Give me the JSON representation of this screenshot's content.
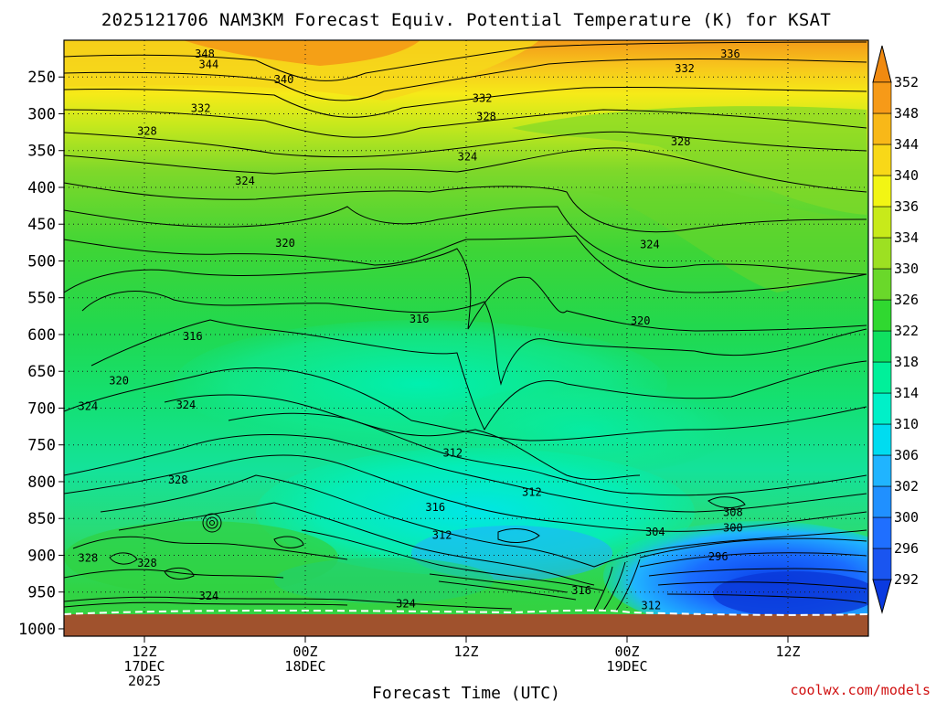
{
  "chart_data": {
    "type": "heatmap",
    "title": "2025121706 NAM3KM Forecast Equiv. Potential Temperature (K) for KSAT",
    "xlabel": "Forecast Time (UTC)",
    "ylabel": "",
    "x_ticks": [
      {
        "lines": [
          "12Z",
          "17DEC",
          "2025"
        ],
        "hour": 6
      },
      {
        "lines": [
          "00Z",
          "18DEC"
        ],
        "hour": 18
      },
      {
        "lines": [
          "12Z"
        ],
        "hour": 30
      },
      {
        "lines": [
          "00Z",
          "19DEC"
        ],
        "hour": 42
      },
      {
        "lines": [
          "12Z"
        ],
        "hour": 54
      }
    ],
    "x_range_hours": [
      0,
      60
    ],
    "y_ticks": [
      250,
      300,
      350,
      400,
      450,
      500,
      550,
      600,
      650,
      700,
      750,
      800,
      850,
      900,
      950,
      1000
    ],
    "y_range_hpa": [
      200,
      1010
    ],
    "surface_pressure_hpa": 985,
    "colorbar": {
      "units": "K",
      "levels": [
        292,
        296,
        300,
        302,
        306,
        310,
        314,
        318,
        322,
        326,
        330,
        334,
        336,
        340,
        344,
        348,
        352
      ],
      "colors": [
        "#0a3ae0",
        "#1a55f0",
        "#1f6fff",
        "#2090ff",
        "#20b4ff",
        "#00dcf0",
        "#00f0c8",
        "#00f09a",
        "#10e060",
        "#30d830",
        "#6ad82a",
        "#9de022",
        "#c8ea1a",
        "#f2f514",
        "#f8d818",
        "#f8b818",
        "#f69a18",
        "#f08a10"
      ]
    },
    "contour_labels": [
      {
        "value": "348",
        "hour": 10.5,
        "p": 218
      },
      {
        "value": "344",
        "hour": 10.8,
        "p": 232
      },
      {
        "value": "340",
        "hour": 16.4,
        "p": 253
      },
      {
        "value": "336",
        "hour": 49.7,
        "p": 218
      },
      {
        "value": "332",
        "hour": 46.3,
        "p": 238
      },
      {
        "value": "332",
        "hour": 31.2,
        "p": 278
      },
      {
        "value": "332",
        "hour": 10.2,
        "p": 292
      },
      {
        "value": "328",
        "hour": 31.5,
        "p": 303
      },
      {
        "value": "328",
        "hour": 6.2,
        "p": 323
      },
      {
        "value": "328",
        "hour": 46.0,
        "p": 337
      },
      {
        "value": "324",
        "hour": 30.1,
        "p": 358
      },
      {
        "value": "324",
        "hour": 13.5,
        "p": 391
      },
      {
        "value": "324",
        "hour": 43.7,
        "p": 477
      },
      {
        "value": "320",
        "hour": 16.5,
        "p": 475
      },
      {
        "value": "320",
        "hour": 43.0,
        "p": 581
      },
      {
        "value": "320",
        "hour": 4.1,
        "p": 662
      },
      {
        "value": "316",
        "hour": 26.5,
        "p": 578
      },
      {
        "value": "316",
        "hour": 9.6,
        "p": 602
      },
      {
        "value": "324",
        "hour": 1.8,
        "p": 697
      },
      {
        "value": "324",
        "hour": 9.1,
        "p": 695
      },
      {
        "value": "312",
        "hour": 29.0,
        "p": 760
      },
      {
        "value": "312",
        "hour": 34.9,
        "p": 814
      },
      {
        "value": "316",
        "hour": 27.7,
        "p": 834
      },
      {
        "value": "312",
        "hour": 28.2,
        "p": 872
      },
      {
        "value": "328",
        "hour": 8.5,
        "p": 797
      },
      {
        "value": "328",
        "hour": 1.8,
        "p": 903
      },
      {
        "value": "328",
        "hour": 6.2,
        "p": 910
      },
      {
        "value": "324",
        "hour": 10.8,
        "p": 955
      },
      {
        "value": "324",
        "hour": 25.5,
        "p": 965
      },
      {
        "value": "316",
        "hour": 38.6,
        "p": 947
      },
      {
        "value": "312",
        "hour": 43.8,
        "p": 968
      },
      {
        "value": "304",
        "hour": 44.1,
        "p": 868
      },
      {
        "value": "308",
        "hour": 49.9,
        "p": 841
      },
      {
        "value": "300",
        "hour": 49.9,
        "p": 862
      },
      {
        "value": "296",
        "hour": 48.8,
        "p": 901
      }
    ]
  },
  "credit": "coolwx.com/models"
}
